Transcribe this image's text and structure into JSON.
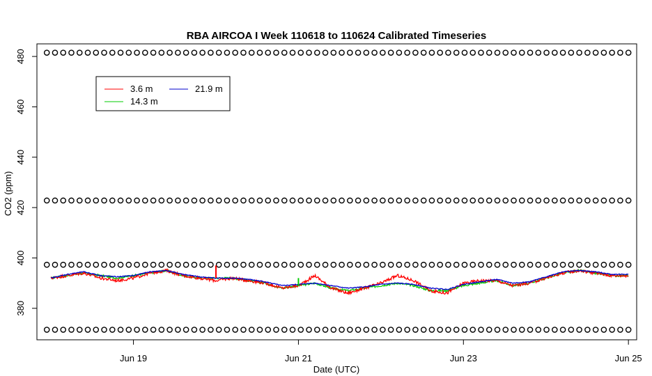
{
  "chart_data": {
    "type": "line",
    "title": "RBA AIRCOA I  Week 110618 to 110624  Calibrated Timeseries",
    "xlabel": "Date (UTC)",
    "ylabel": "CO2 (ppm)",
    "x_ticks": [
      "Jun 19",
      "Jun 21",
      "Jun 23",
      "Jun 25"
    ],
    "x_tick_positions": [
      19,
      21,
      23,
      25
    ],
    "y_ticks": [
      380,
      400,
      420,
      440,
      460,
      480
    ],
    "xlim": [
      17.83,
      25.1
    ],
    "ylim": [
      367.5,
      485
    ],
    "grid": false,
    "legend_placement": "top-left",
    "series": [
      {
        "name": "3.6 m",
        "color": "#ff0000",
        "x": [
          18.0,
          18.2,
          18.4,
          18.6,
          18.8,
          19.0,
          19.2,
          19.4,
          19.6,
          19.8,
          20.0,
          20.2,
          20.4,
          20.6,
          20.8,
          21.0,
          21.2,
          21.4,
          21.6,
          21.8,
          22.0,
          22.2,
          22.4,
          22.6,
          22.8,
          23.0,
          23.2,
          23.4,
          23.6,
          23.8,
          24.0,
          24.2,
          24.4,
          24.6,
          24.8,
          25.0
        ],
        "values": [
          392,
          393,
          394,
          392,
          391,
          392,
          394,
          395,
          393,
          392,
          391,
          392,
          391,
          390,
          388,
          389,
          393,
          388,
          386,
          388,
          390,
          393,
          391,
          387,
          386,
          390,
          391,
          391,
          389,
          390,
          392,
          394,
          395,
          394,
          393,
          393
        ]
      },
      {
        "name": "14.3 m",
        "color": "#00cc00",
        "x": [
          18.0,
          18.2,
          18.4,
          18.6,
          18.8,
          19.0,
          19.2,
          19.4,
          19.6,
          19.8,
          20.0,
          20.2,
          20.4,
          20.6,
          20.8,
          21.0,
          21.2,
          21.4,
          21.6,
          21.8,
          22.0,
          22.2,
          22.4,
          22.6,
          22.8,
          23.0,
          23.2,
          23.4,
          23.6,
          23.8,
          24.0,
          24.2,
          24.4,
          24.6,
          24.8,
          25.0
        ],
        "values": [
          392,
          393,
          394,
          393,
          392,
          393,
          394,
          395,
          393,
          392,
          392,
          392,
          391,
          390,
          388,
          389,
          390,
          388,
          387,
          388,
          389,
          390,
          389,
          387,
          387,
          389,
          390,
          391,
          389,
          390,
          392,
          394,
          395,
          394,
          393,
          393
        ]
      },
      {
        "name": "21.9 m",
        "color": "#0000cc",
        "x": [
          18.0,
          18.2,
          18.4,
          18.6,
          18.8,
          19.0,
          19.2,
          19.4,
          19.6,
          19.8,
          20.0,
          20.2,
          20.4,
          20.6,
          20.8,
          21.0,
          21.2,
          21.4,
          21.6,
          21.8,
          22.0,
          22.2,
          22.4,
          22.6,
          22.8,
          23.0,
          23.2,
          23.4,
          23.6,
          23.8,
          24.0,
          24.2,
          24.4,
          24.6,
          24.8,
          25.0
        ],
        "values": [
          392,
          393.5,
          394.5,
          393,
          392.5,
          393,
          394.5,
          395,
          393.5,
          392.5,
          392,
          392,
          391.5,
          390.5,
          389,
          389.5,
          390,
          389,
          388,
          388.5,
          389.5,
          390,
          389.5,
          388,
          387.5,
          389.5,
          390.5,
          391.5,
          390,
          390.5,
          392.5,
          394.5,
          395,
          394.5,
          393.5,
          393.5
        ]
      },
      {
        "name": "",
        "kind": "reference-points",
        "color": "#000000",
        "marker": "circle",
        "levels": [
          481.5,
          422.8,
          397.3,
          371.5
        ],
        "x_range": [
          17.95,
          25.0
        ],
        "points_per_level": 72
      }
    ],
    "spikes": [
      {
        "series": "3.6 m",
        "x": 20.0,
        "y_from": 392,
        "y_to": 397
      },
      {
        "series": "14.3 m",
        "x": 21.0,
        "y_from": 389,
        "y_to": 392
      }
    ],
    "legend": {
      "entries": [
        {
          "label": "3.6 m",
          "color": "#ff0000"
        },
        {
          "label": "21.9 m",
          "color": "#0000cc"
        },
        {
          "label": "14.3 m",
          "color": "#00cc00"
        }
      ]
    }
  }
}
